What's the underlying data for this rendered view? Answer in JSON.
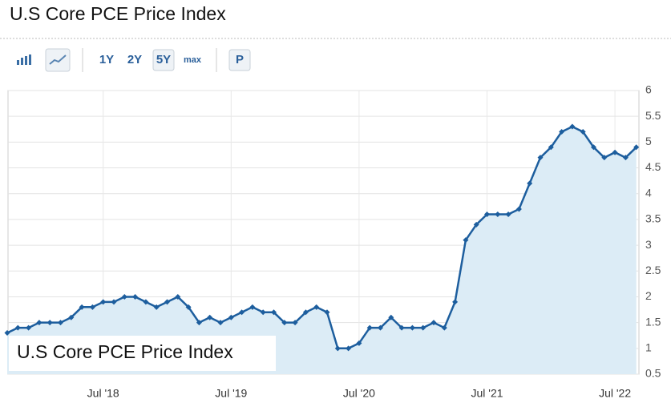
{
  "title": "U.S Core PCE Price Index",
  "toolbar": {
    "ranges": [
      "1Y",
      "2Y",
      "5Y",
      "max"
    ],
    "selected_range": 2,
    "print": "P"
  },
  "chart_data": {
    "type": "line",
    "watermark": "U.S Core PCE Price Index",
    "x": [
      "2017-10",
      "2017-11",
      "2017-12",
      "2018-01",
      "2018-02",
      "2018-03",
      "2018-04",
      "2018-05",
      "2018-06",
      "2018-07",
      "2018-08",
      "2018-09",
      "2018-10",
      "2018-11",
      "2018-12",
      "2019-01",
      "2019-02",
      "2019-03",
      "2019-04",
      "2019-05",
      "2019-06",
      "2019-07",
      "2019-08",
      "2019-09",
      "2019-10",
      "2019-11",
      "2019-12",
      "2020-01",
      "2020-02",
      "2020-03",
      "2020-04",
      "2020-05",
      "2020-06",
      "2020-07",
      "2020-08",
      "2020-09",
      "2020-10",
      "2020-11",
      "2020-12",
      "2021-01",
      "2021-02",
      "2021-03",
      "2021-04",
      "2021-05",
      "2021-06",
      "2021-07",
      "2021-08",
      "2021-09",
      "2021-10",
      "2021-11",
      "2021-12",
      "2022-01",
      "2022-02",
      "2022-03",
      "2022-04",
      "2022-05",
      "2022-06",
      "2022-07",
      "2022-08",
      "2022-09"
    ],
    "values": [
      1.3,
      1.4,
      1.4,
      1.5,
      1.5,
      1.5,
      1.6,
      1.8,
      1.8,
      1.9,
      1.9,
      2.0,
      2.0,
      1.9,
      1.8,
      1.9,
      2.0,
      1.8,
      1.5,
      1.6,
      1.5,
      1.6,
      1.7,
      1.8,
      1.7,
      1.7,
      1.5,
      1.5,
      1.7,
      1.8,
      1.7,
      1.0,
      1.0,
      1.1,
      1.4,
      1.4,
      1.6,
      1.4,
      1.4,
      1.4,
      1.5,
      1.4,
      1.9,
      3.1,
      3.4,
      3.6,
      3.6,
      3.6,
      3.7,
      4.2,
      4.7,
      4.9,
      5.2,
      5.3,
      5.2,
      4.9,
      4.7,
      4.8,
      4.7,
      4.9
    ],
    "color": "#1d5e9e",
    "area_color": "#dcecf6",
    "area": true,
    "ylim": [
      0.5,
      6
    ],
    "yticks": [
      0.5,
      1,
      1.5,
      2,
      2.5,
      3,
      3.5,
      4,
      4.5,
      5,
      5.5,
      6
    ],
    "xticks": [
      {
        "value": "2018-07",
        "label": "Jul '18"
      },
      {
        "value": "2019-07",
        "label": "Jul '19"
      },
      {
        "value": "2020-07",
        "label": "Jul '20"
      },
      {
        "value": "2021-07",
        "label": "Jul '21"
      },
      {
        "value": "2022-07",
        "label": "Jul '22"
      }
    ],
    "grid": true,
    "y_axis_side": "right"
  }
}
